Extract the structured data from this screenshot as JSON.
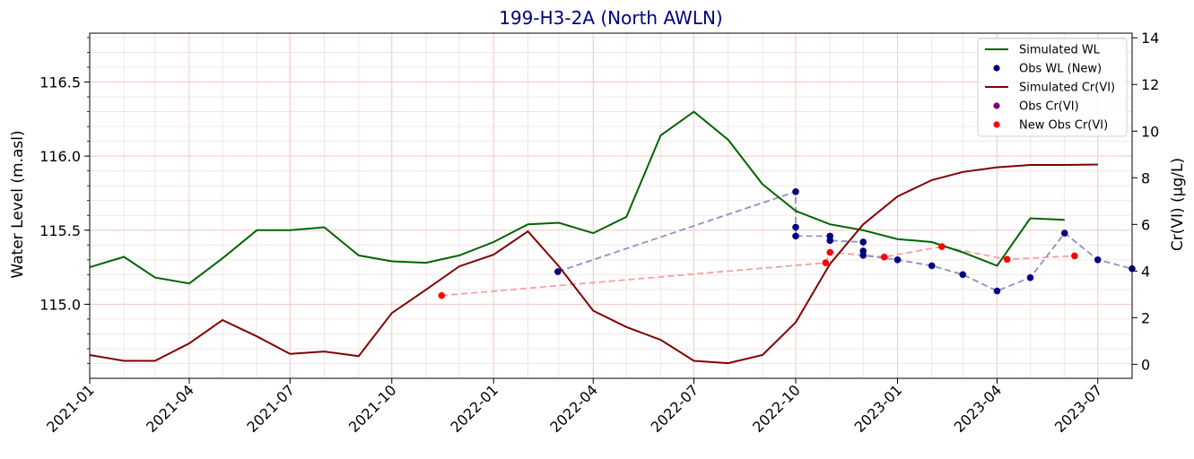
{
  "chart_data": {
    "type": "line",
    "title": "199-H3-2A (North AWLN)",
    "ylabel_left": "Water Level (m.asl)",
    "ylabel_right": "Cr(VI) (µg/L)",
    "xlim": [
      "2021-01-01",
      "2023-08-01"
    ],
    "ylim_left": [
      114.5,
      116.83
    ],
    "ylim_right": [
      -0.6,
      14.2
    ],
    "x_ticks": [
      "2021-01",
      "2021-04",
      "2021-07",
      "2021-10",
      "2022-01",
      "2022-04",
      "2022-07",
      "2022-10",
      "2023-01",
      "2023-04",
      "2023-07"
    ],
    "y_ticks_left": [
      "115.0",
      "115.5",
      "116.0",
      "116.5"
    ],
    "y_ticks_right": [
      "0",
      "2",
      "4",
      "6",
      "8",
      "10",
      "12",
      "14"
    ],
    "grid": true,
    "legend_position": "top-right",
    "series": [
      {
        "name": "Simulated WL",
        "axis": "left",
        "kind": "line",
        "color": "#006400",
        "x": [
          "2021-01-01",
          "2021-02-01",
          "2021-03-01",
          "2021-04-01",
          "2021-05-01",
          "2021-06-01",
          "2021-07-01",
          "2021-08-01",
          "2021-09-01",
          "2021-10-01",
          "2021-11-01",
          "2021-12-01",
          "2022-01-01",
          "2022-02-01",
          "2022-03-01",
          "2022-04-01",
          "2022-05-01",
          "2022-06-01",
          "2022-07-01",
          "2022-08-01",
          "2022-09-01",
          "2022-10-01",
          "2022-11-01",
          "2022-12-01",
          "2023-01-01",
          "2023-02-01",
          "2023-03-01",
          "2023-04-01",
          "2023-05-01",
          "2023-06-01"
        ],
        "y": [
          115.25,
          115.32,
          115.18,
          115.14,
          115.31,
          115.5,
          115.5,
          115.52,
          115.33,
          115.29,
          115.28,
          115.33,
          115.42,
          115.54,
          115.55,
          115.48,
          115.59,
          116.14,
          116.3,
          116.11,
          115.81,
          115.63,
          115.54,
          115.5,
          115.44,
          115.42,
          115.35,
          115.26,
          115.58,
          115.57
        ]
      },
      {
        "name": "Obs WL (New)",
        "axis": "left",
        "kind": "scatter",
        "color": "#000080",
        "connector_color": "#8f8fc2",
        "x": [
          "2022-02-28",
          "2022-10-01",
          "2022-10-01",
          "2022-10-01",
          "2022-11-01",
          "2022-11-01",
          "2022-12-01",
          "2022-12-01",
          "2022-12-01",
          "2023-01-01",
          "2023-02-01",
          "2023-03-01",
          "2023-04-01",
          "2023-05-01",
          "2023-06-01",
          "2023-07-01",
          "2023-08-01"
        ],
        "y": [
          115.22,
          115.76,
          115.52,
          115.46,
          115.46,
          115.43,
          115.42,
          115.36,
          115.33,
          115.3,
          115.26,
          115.2,
          115.09,
          115.18,
          115.48,
          115.3,
          115.24
        ]
      },
      {
        "name": "Simulated Cr(VI)",
        "axis": "right",
        "kind": "line",
        "color": "#800000",
        "x": [
          "2021-01-01",
          "2021-02-01",
          "2021-03-01",
          "2021-04-01",
          "2021-05-01",
          "2021-06-01",
          "2021-07-01",
          "2021-08-01",
          "2021-09-01",
          "2021-10-01",
          "2021-11-01",
          "2021-12-01",
          "2022-01-01",
          "2022-02-01",
          "2022-03-01",
          "2022-04-01",
          "2022-05-01",
          "2022-06-01",
          "2022-07-01",
          "2022-08-01",
          "2022-09-01",
          "2022-10-01",
          "2022-11-01",
          "2022-12-01",
          "2023-01-01",
          "2023-02-01",
          "2023-03-01",
          "2023-04-01",
          "2023-05-01",
          "2023-06-01",
          "2023-07-01"
        ],
        "y": [
          0.4,
          0.15,
          0.15,
          0.9,
          1.9,
          1.2,
          0.45,
          0.55,
          0.35,
          2.2,
          3.2,
          4.2,
          4.7,
          5.7,
          4.2,
          2.3,
          1.6,
          1.05,
          0.15,
          0.05,
          0.4,
          1.8,
          4.3,
          6.0,
          7.2,
          7.9,
          8.25,
          8.45,
          8.55,
          8.55,
          8.57
        ]
      },
      {
        "name": "Obs Cr(VI)",
        "axis": "right",
        "kind": "scatter",
        "color": "#800080",
        "x": [],
        "y": []
      },
      {
        "name": "New Obs Cr(VI)",
        "axis": "right",
        "kind": "scatter",
        "color": "#ff0000",
        "connector_color": "#f4a0a0",
        "x": [
          "2021-11-15",
          "2022-10-28",
          "2022-11-01",
          "2022-12-20",
          "2023-02-10",
          "2023-04-10",
          "2023-06-10"
        ],
        "y": [
          2.95,
          4.35,
          4.8,
          4.6,
          5.05,
          4.5,
          4.65
        ]
      }
    ]
  }
}
